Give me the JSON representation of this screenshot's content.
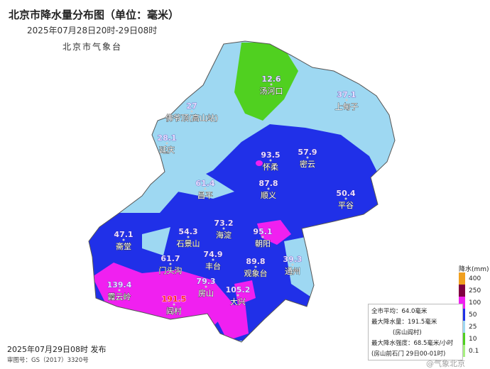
{
  "header": {
    "title": "北京市降水量分布图（单位：毫米）",
    "subtitle": "2025年07月28日20时-29日08时",
    "agency": "北京市气象台"
  },
  "stations": [
    {
      "value": "12.6",
      "name": "汤河口"
    },
    {
      "value": "37.1",
      "name": "上甸子"
    },
    {
      "value": "27",
      "name": "佛爷顶(高山站)"
    },
    {
      "value": "28.1",
      "name": "延庆"
    },
    {
      "value": "93.5",
      "name": "怀柔"
    },
    {
      "value": "57.9",
      "name": "密云"
    },
    {
      "value": "61.4",
      "name": "昌平"
    },
    {
      "value": "87.8",
      "name": "顺义"
    },
    {
      "value": "50.4",
      "name": "平谷"
    },
    {
      "value": "47.1",
      "name": "斋堂"
    },
    {
      "value": "73.2",
      "name": "海淀"
    },
    {
      "value": "54.3",
      "name": "石景山"
    },
    {
      "value": "95.1",
      "name": "朝阳"
    },
    {
      "value": "61.7",
      "name": "门头沟"
    },
    {
      "value": "74.9",
      "name": "丰台"
    },
    {
      "value": "79.3",
      "name": "房山"
    },
    {
      "value": "89.8",
      "name": "观象台"
    },
    {
      "value": "39.3",
      "name": "通州"
    },
    {
      "value": "139.4",
      "name": "霞云岭"
    },
    {
      "value": "191.5",
      "name": "阎村"
    },
    {
      "value": "105.2",
      "name": "大兴"
    }
  ],
  "legend": {
    "title": "降水(mm)",
    "bins": [
      {
        "label": "400",
        "color": "#f0a020"
      },
      {
        "label": "250",
        "color": "#800040"
      },
      {
        "label": "100",
        "color": "#f020f0"
      },
      {
        "label": "50",
        "color": "#2030e8"
      },
      {
        "label": "25",
        "color": "#9ed8f2"
      },
      {
        "label": "10",
        "color": "#50d020"
      },
      {
        "label": "0.1",
        "color": "#a8f080"
      }
    ]
  },
  "info": {
    "line1": "全市平均：64.0毫米",
    "line2": "最大降水量：191.5毫米",
    "line3": "(房山阎村)",
    "line4": "最大降水强度：68.5毫米/小时",
    "line5": "(房山前石门 29日00-01时)"
  },
  "footer": {
    "issued": "2025年07月29日08时 发布",
    "map_no": "审图号：GS（2017）3320号",
    "watermark": "@气象北京"
  }
}
